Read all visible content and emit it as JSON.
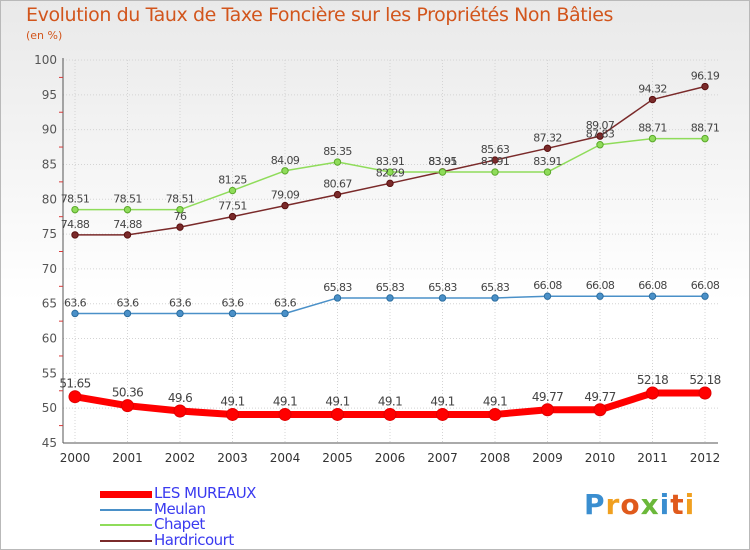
{
  "title": "Evolution du Taux de Taxe Foncière sur les Propriétés Non Bâties",
  "unit_label": "(en %)",
  "chart_data": {
    "type": "line",
    "title": "Evolution du Taux de Taxe Foncière sur les Propriétés Non Bâties",
    "ylabel": "(en %)",
    "xlabel": "",
    "x": [
      "2000",
      "2001",
      "2002",
      "2003",
      "2004",
      "2005",
      "2006",
      "2007",
      "2008",
      "2009",
      "2010",
      "2011",
      "2012"
    ],
    "ylim": [
      45,
      100
    ],
    "yticks": [
      45,
      50,
      55,
      60,
      65,
      70,
      75,
      80,
      85,
      90,
      95,
      100
    ],
    "grid": true,
    "legend": "bottom-left",
    "series": [
      {
        "name": "LES MUREAUX",
        "color": "#ff0000",
        "values": [
          51.65,
          50.36,
          49.6,
          49.1,
          49.1,
          49.1,
          49.1,
          49.1,
          49.1,
          49.77,
          49.77,
          52.18,
          52.18
        ],
        "labels": [
          "51.65",
          "50.36",
          "49.6",
          "49.1",
          "49.1",
          "49.1",
          "49.1",
          "49.1",
          "49.1",
          "49.77",
          "49.77",
          "52.18",
          "52.18"
        ]
      },
      {
        "name": "Meulan",
        "color": "#4a90c8",
        "values": [
          63.6,
          63.6,
          63.6,
          63.6,
          63.6,
          65.83,
          65.83,
          65.83,
          65.83,
          66.08,
          66.08,
          66.08,
          66.08
        ],
        "labels": [
          "63.6",
          "63.6",
          "63.6",
          "63.6",
          "63.6",
          "65.83",
          "65.83",
          "65.83",
          "65.83",
          "66.08",
          "66.08",
          "66.08",
          "66.08"
        ]
      },
      {
        "name": "Chapet",
        "color": "#8fdc5a",
        "values": [
          78.51,
          78.51,
          78.51,
          81.25,
          84.09,
          85.35,
          83.91,
          83.91,
          83.91,
          83.91,
          87.83,
          88.71,
          88.71
        ],
        "labels": [
          "78.51",
          "78.51",
          "78.51",
          "81.25",
          "84.09",
          "85.35",
          "83.91",
          "83.91",
          "83.91",
          "83.91",
          "87.83",
          "88.71",
          "88.71"
        ]
      },
      {
        "name": "Hardricourt",
        "color": "#7a2a2a",
        "values": [
          74.88,
          74.88,
          76,
          77.51,
          79.09,
          80.67,
          82.29,
          83.95,
          85.63,
          87.32,
          89.07,
          94.32,
          96.19
        ],
        "labels": [
          "74.88",
          "74.88",
          "76",
          "77.51",
          "79.09",
          "80.67",
          "82.29",
          "83.95",
          "85.63",
          "87.32",
          "89.07",
          "94.32",
          "96.19"
        ]
      }
    ]
  },
  "logo": {
    "letters": [
      "P",
      "r",
      "o",
      "x",
      "i",
      "t",
      "i"
    ]
  }
}
